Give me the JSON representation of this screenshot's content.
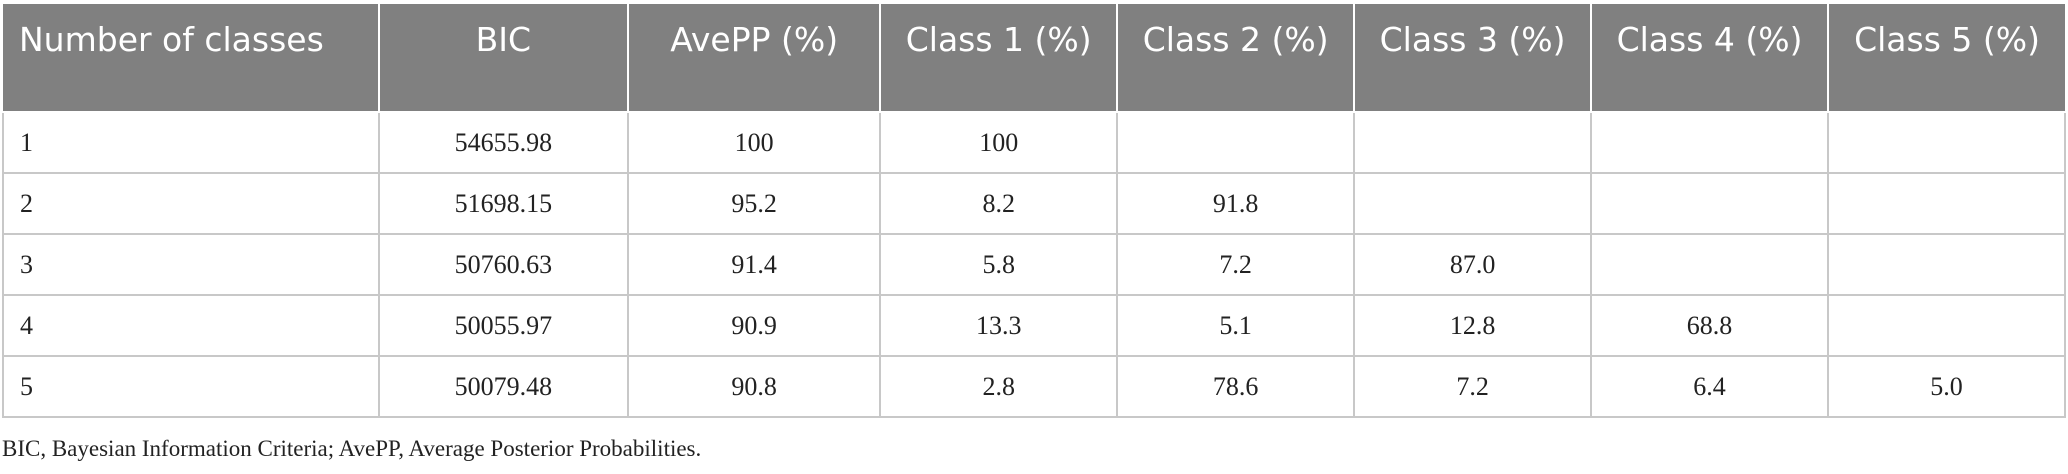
{
  "table": {
    "headers": [
      "Number of classes",
      "BIC",
      "AvePP (%)",
      "Class 1 (%)",
      "Class 2 (%)",
      "Class 3 (%)",
      "Class 4 (%)",
      "Class 5 (%)"
    ],
    "rows": [
      [
        "1",
        "54655.98",
        "100",
        "100",
        "",
        "",
        "",
        ""
      ],
      [
        "2",
        "51698.15",
        "95.2",
        "8.2",
        "91.8",
        "",
        "",
        ""
      ],
      [
        "3",
        "50760.63",
        "91.4",
        "5.8",
        "7.2",
        "87.0",
        "",
        ""
      ],
      [
        "4",
        "50055.97",
        "90.9",
        "13.3",
        "5.1",
        "12.8",
        "68.8",
        ""
      ],
      [
        "5",
        "50079.48",
        "90.8",
        "2.8",
        "78.6",
        "7.2",
        "6.4",
        "5.0"
      ]
    ]
  },
  "footnote": "BIC, Bayesian Information Criteria; AvePP, Average Posterior Probabilities."
}
